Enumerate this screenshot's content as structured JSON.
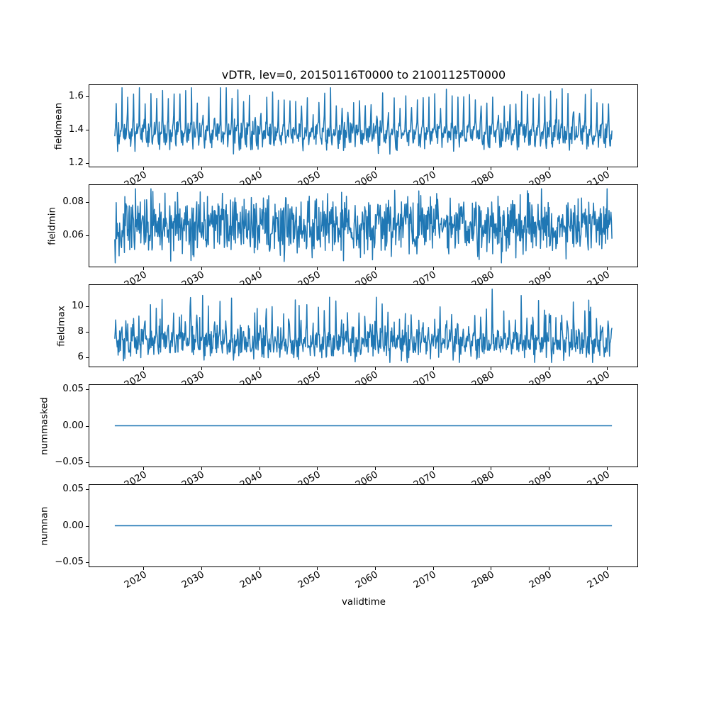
{
  "figure": {
    "background": "#ffffff",
    "frame_color": "#000000",
    "text_color": "#000000"
  },
  "chart_data": {
    "type": "line",
    "title": "vDTR, lev=0, 20150116T0000 to 21001125T0000",
    "xlabel": "validtime",
    "line_color": "#1f77b4",
    "line_width": 1.5,
    "grid": false,
    "legend": "none",
    "xlim": [
      2010.65,
      2105.3
    ],
    "x_data_range": [
      2015.04,
      2100.9
    ],
    "xticks": [
      2020,
      2030,
      2040,
      2050,
      2060,
      2070,
      2080,
      2090,
      2100
    ],
    "xtick_rotation_deg": 30,
    "subplots": [
      {
        "ylabel": "fieldmean",
        "ylim": [
          1.177,
          1.668
        ],
        "yticks": [
          1.2,
          1.4,
          1.6
        ],
        "ytick_labels": [
          "1.2",
          "1.4",
          "1.6"
        ],
        "series": {
          "kind": "seasonal-noise",
          "seed": 7,
          "points_per_year": 12,
          "base": 1.388,
          "seasonal": [
            -0.005,
            0.02,
            0.065,
            0.19,
            0.04,
            -0.025,
            -0.078,
            -0.038,
            0.012,
            -0.058,
            0.018,
            -0.012
          ],
          "seasonal_jitter": 0.4,
          "noise": 0.025,
          "spike_p": 0,
          "spike_amp": 0,
          "clip": [
            1.195,
            1.652
          ]
        }
      },
      {
        "ylabel": "fieldmin",
        "ylim": [
          0.0415,
          0.0901
        ],
        "yticks": [
          0.06,
          0.08
        ],
        "ytick_labels": [
          "0.06",
          "0.08"
        ],
        "series": {
          "kind": "seasonal-noise",
          "seed": 13,
          "points_per_year": 12,
          "base": 0.0663,
          "seasonal": [
            0,
            0,
            0,
            0,
            0,
            0,
            0,
            0,
            0,
            0,
            0,
            0
          ],
          "seasonal_jitter": 0,
          "noise": 0.0085,
          "spike_p": 0,
          "spike_amp": 0,
          "clip": [
            0.0437,
            0.0879
          ]
        }
      },
      {
        "ylabel": "fieldmax",
        "ylim": [
          5.3,
          11.65
        ],
        "yticks": [
          6,
          8,
          10
        ],
        "ytick_labels": [
          "6",
          "8",
          "10"
        ],
        "series": {
          "kind": "seasonal-noise",
          "seed": 42,
          "points_per_year": 12,
          "base": 7.35,
          "seasonal": [
            -0.2,
            0.5,
            1.7,
            0.6,
            -0.15,
            -0.55,
            -0.85,
            -0.35,
            0.25,
            -0.65,
            0.15,
            -0.45
          ],
          "seasonal_jitter": 0.7,
          "noise": 0.45,
          "spike_p": 0.045,
          "spike_amp": 2.7,
          "clip": [
            5.62,
            11.33
          ]
        }
      },
      {
        "ylabel": "nummasked",
        "ylim": [
          -0.0556,
          0.0556
        ],
        "yticks": [
          -0.05,
          0,
          0.05
        ],
        "ytick_labels": [
          "−0.05",
          "0.00",
          "0.05"
        ],
        "series": {
          "kind": "constant",
          "value": 0
        }
      },
      {
        "ylabel": "numnan",
        "ylim": [
          -0.0556,
          0.0556
        ],
        "yticks": [
          -0.05,
          0,
          0.05
        ],
        "ytick_labels": [
          "−0.05",
          "0.00",
          "0.05"
        ],
        "series": {
          "kind": "constant",
          "value": 0
        }
      }
    ]
  }
}
